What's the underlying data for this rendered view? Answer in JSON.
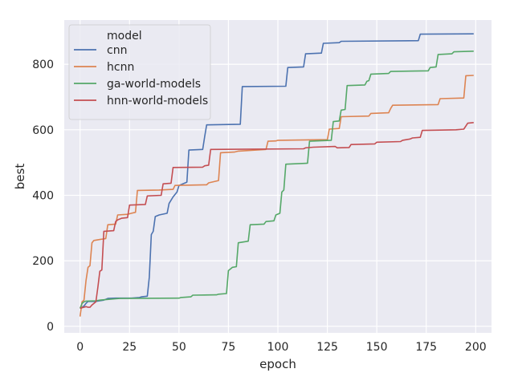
{
  "chart_data": {
    "type": "line",
    "xlabel": "epoch",
    "ylabel": "best",
    "xlim": [
      -8,
      208
    ],
    "ylim": [
      -20,
      935
    ],
    "xticks": [
      0,
      25,
      50,
      75,
      100,
      125,
      150,
      175,
      200
    ],
    "yticks": [
      0,
      200,
      400,
      600,
      800
    ],
    "grid": true,
    "legend": {
      "title": "model",
      "placement": "top-left"
    },
    "series": [
      {
        "name": "cnn",
        "color": "#4c72b0",
        "points": [
          [
            0,
            55
          ],
          [
            1,
            58
          ],
          [
            2,
            62
          ],
          [
            3,
            70
          ],
          [
            4,
            76
          ],
          [
            8,
            76
          ],
          [
            10,
            78
          ],
          [
            12,
            80
          ],
          [
            14,
            85
          ],
          [
            18,
            86
          ],
          [
            26,
            86
          ],
          [
            30,
            88
          ],
          [
            31,
            90
          ],
          [
            34,
            92
          ],
          [
            35,
            150
          ],
          [
            36,
            280
          ],
          [
            37,
            290
          ],
          [
            38,
            335
          ],
          [
            40,
            340
          ],
          [
            44,
            345
          ],
          [
            45,
            375
          ],
          [
            46,
            385
          ],
          [
            47,
            395
          ],
          [
            49,
            410
          ],
          [
            50,
            430
          ],
          [
            54,
            440
          ],
          [
            55,
            538
          ],
          [
            62,
            540
          ],
          [
            63,
            580
          ],
          [
            64,
            615
          ],
          [
            81,
            617
          ],
          [
            82,
            732
          ],
          [
            104,
            733
          ],
          [
            105,
            790
          ],
          [
            113,
            792
          ],
          [
            114,
            832
          ],
          [
            122,
            834
          ],
          [
            123,
            864
          ],
          [
            131,
            866
          ],
          [
            132,
            870
          ],
          [
            171,
            872
          ],
          [
            172,
            892
          ],
          [
            199,
            893
          ]
        ]
      },
      {
        "name": "hcnn",
        "color": "#dd8452",
        "points": [
          [
            0,
            30
          ],
          [
            1,
            75
          ],
          [
            2,
            80
          ],
          [
            3,
            140
          ],
          [
            4,
            180
          ],
          [
            5,
            185
          ],
          [
            6,
            255
          ],
          [
            7,
            262
          ],
          [
            10,
            265
          ],
          [
            13,
            268
          ],
          [
            14,
            310
          ],
          [
            18,
            312
          ],
          [
            19,
            340
          ],
          [
            24,
            342
          ],
          [
            26,
            345
          ],
          [
            28,
            348
          ],
          [
            29,
            415
          ],
          [
            40,
            416
          ],
          [
            47,
            418
          ],
          [
            48,
            430
          ],
          [
            64,
            432
          ],
          [
            65,
            438
          ],
          [
            70,
            445
          ],
          [
            71,
            530
          ],
          [
            78,
            532
          ],
          [
            80,
            535
          ],
          [
            89,
            538
          ],
          [
            94,
            540
          ],
          [
            95,
            565
          ],
          [
            99,
            566
          ],
          [
            100,
            568
          ],
          [
            125,
            570
          ],
          [
            126,
            602
          ],
          [
            131,
            604
          ],
          [
            132,
            640
          ],
          [
            146,
            642
          ],
          [
            147,
            650
          ],
          [
            156,
            652
          ],
          [
            157,
            665
          ],
          [
            158,
            675
          ],
          [
            181,
            677
          ],
          [
            182,
            695
          ],
          [
            194,
            697
          ],
          [
            195,
            765
          ],
          [
            199,
            766
          ]
        ]
      },
      {
        "name": "ga-world-models",
        "color": "#55a868",
        "points": [
          [
            0,
            55
          ],
          [
            1,
            70
          ],
          [
            2,
            75
          ],
          [
            3,
            77
          ],
          [
            8,
            78
          ],
          [
            10,
            80
          ],
          [
            14,
            82
          ],
          [
            18,
            84
          ],
          [
            20,
            85
          ],
          [
            50,
            86
          ],
          [
            51,
            88
          ],
          [
            56,
            90
          ],
          [
            57,
            95
          ],
          [
            69,
            96
          ],
          [
            70,
            98
          ],
          [
            74,
            100
          ],
          [
            75,
            170
          ],
          [
            76,
            175
          ],
          [
            77,
            180
          ],
          [
            79,
            182
          ],
          [
            80,
            255
          ],
          [
            85,
            260
          ],
          [
            86,
            310
          ],
          [
            93,
            312
          ],
          [
            94,
            320
          ],
          [
            98,
            322
          ],
          [
            99,
            340
          ],
          [
            101,
            345
          ],
          [
            102,
            410
          ],
          [
            103,
            416
          ],
          [
            104,
            495
          ],
          [
            115,
            498
          ],
          [
            116,
            565
          ],
          [
            127,
            568
          ],
          [
            128,
            625
          ],
          [
            131,
            627
          ],
          [
            132,
            660
          ],
          [
            134,
            662
          ],
          [
            135,
            735
          ],
          [
            144,
            737
          ],
          [
            145,
            748
          ],
          [
            146,
            750
          ],
          [
            147,
            770
          ],
          [
            156,
            772
          ],
          [
            157,
            778
          ],
          [
            176,
            780
          ],
          [
            177,
            790
          ],
          [
            180,
            792
          ],
          [
            181,
            830
          ],
          [
            188,
            832
          ],
          [
            189,
            838
          ],
          [
            199,
            840
          ]
        ]
      },
      {
        "name": "hnn-world-models",
        "color": "#c44e52",
        "points": [
          [
            0,
            55
          ],
          [
            3,
            60
          ],
          [
            4,
            58
          ],
          [
            5,
            58
          ],
          [
            6,
            65
          ],
          [
            8,
            75
          ],
          [
            9,
            120
          ],
          [
            10,
            168
          ],
          [
            11,
            172
          ],
          [
            12,
            290
          ],
          [
            17,
            292
          ],
          [
            18,
            320
          ],
          [
            19,
            325
          ],
          [
            21,
            330
          ],
          [
            24,
            332
          ],
          [
            25,
            370
          ],
          [
            33,
            372
          ],
          [
            34,
            398
          ],
          [
            41,
            400
          ],
          [
            42,
            435
          ],
          [
            46,
            437
          ],
          [
            47,
            485
          ],
          [
            62,
            486
          ],
          [
            63,
            490
          ],
          [
            65,
            492
          ],
          [
            66,
            540
          ],
          [
            113,
            542
          ],
          [
            114,
            545
          ],
          [
            118,
            547
          ],
          [
            129,
            549
          ],
          [
            130,
            545
          ],
          [
            136,
            546
          ],
          [
            137,
            555
          ],
          [
            149,
            557
          ],
          [
            150,
            562
          ],
          [
            162,
            564
          ],
          [
            163,
            568
          ],
          [
            165,
            570
          ],
          [
            167,
            572
          ],
          [
            168,
            575
          ],
          [
            172,
            577
          ],
          [
            173,
            598
          ],
          [
            182,
            599
          ],
          [
            190,
            600
          ],
          [
            194,
            602
          ],
          [
            196,
            620
          ],
          [
            199,
            622
          ]
        ]
      }
    ]
  }
}
